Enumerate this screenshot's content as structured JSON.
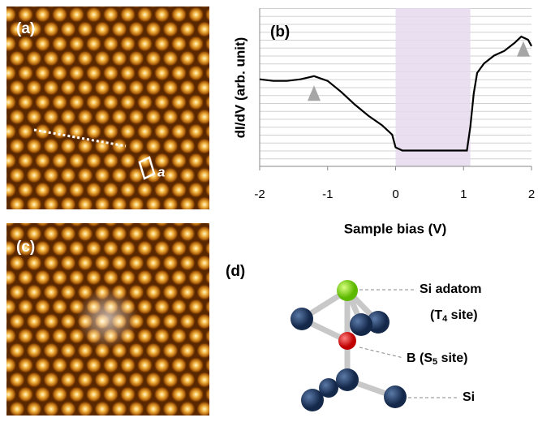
{
  "panels": {
    "a": {
      "label": "(a)",
      "lattice_label": "a"
    },
    "c": {
      "label": "(c)"
    },
    "d": {
      "label": "(d)",
      "adatom": "Si adatom",
      "adatom_site": {
        "pre": "(T",
        "sub": "4",
        "post": " site)"
      },
      "boron": {
        "pre": "B (S",
        "sub": "5",
        "post": " site)"
      },
      "silicon": "Si"
    }
  },
  "chart_data": {
    "type": "line",
    "label": "(b)",
    "xlabel": "Sample bias (V)",
    "ylabel": "dI/dV (arb. unit)",
    "xlim": [
      -2,
      2
    ],
    "xticks": [
      -2,
      -1,
      0,
      1,
      2
    ],
    "ylim": [
      0,
      10
    ],
    "x": [
      -2,
      -1.8,
      -1.6,
      -1.4,
      -1.2,
      -1.0,
      -0.8,
      -0.6,
      -0.4,
      -0.2,
      -0.05,
      0.0,
      0.1,
      0.3,
      0.5,
      0.7,
      0.9,
      1.05,
      1.1,
      1.15,
      1.2,
      1.3,
      1.45,
      1.6,
      1.75,
      1.85,
      1.95,
      2
    ],
    "series": [
      {
        "color": "#000000",
        "values": [
          5.5,
          5.4,
          5.4,
          5.5,
          5.7,
          5.4,
          4.7,
          3.9,
          3.2,
          2.6,
          2.0,
          1.2,
          1.0,
          1.0,
          1.0,
          1.0,
          1.0,
          1.0,
          2.5,
          4.6,
          5.9,
          6.5,
          7.0,
          7.3,
          7.8,
          8.2,
          8.0,
          7.6
        ]
      }
    ],
    "shade": {
      "range": [
        0,
        1.1
      ],
      "color": "#e6d9ee"
    },
    "markers": {
      "x": [
        -1.2,
        1.88
      ],
      "y": [
        4.6,
        7.4
      ],
      "color": "#a6a6a6"
    }
  }
}
